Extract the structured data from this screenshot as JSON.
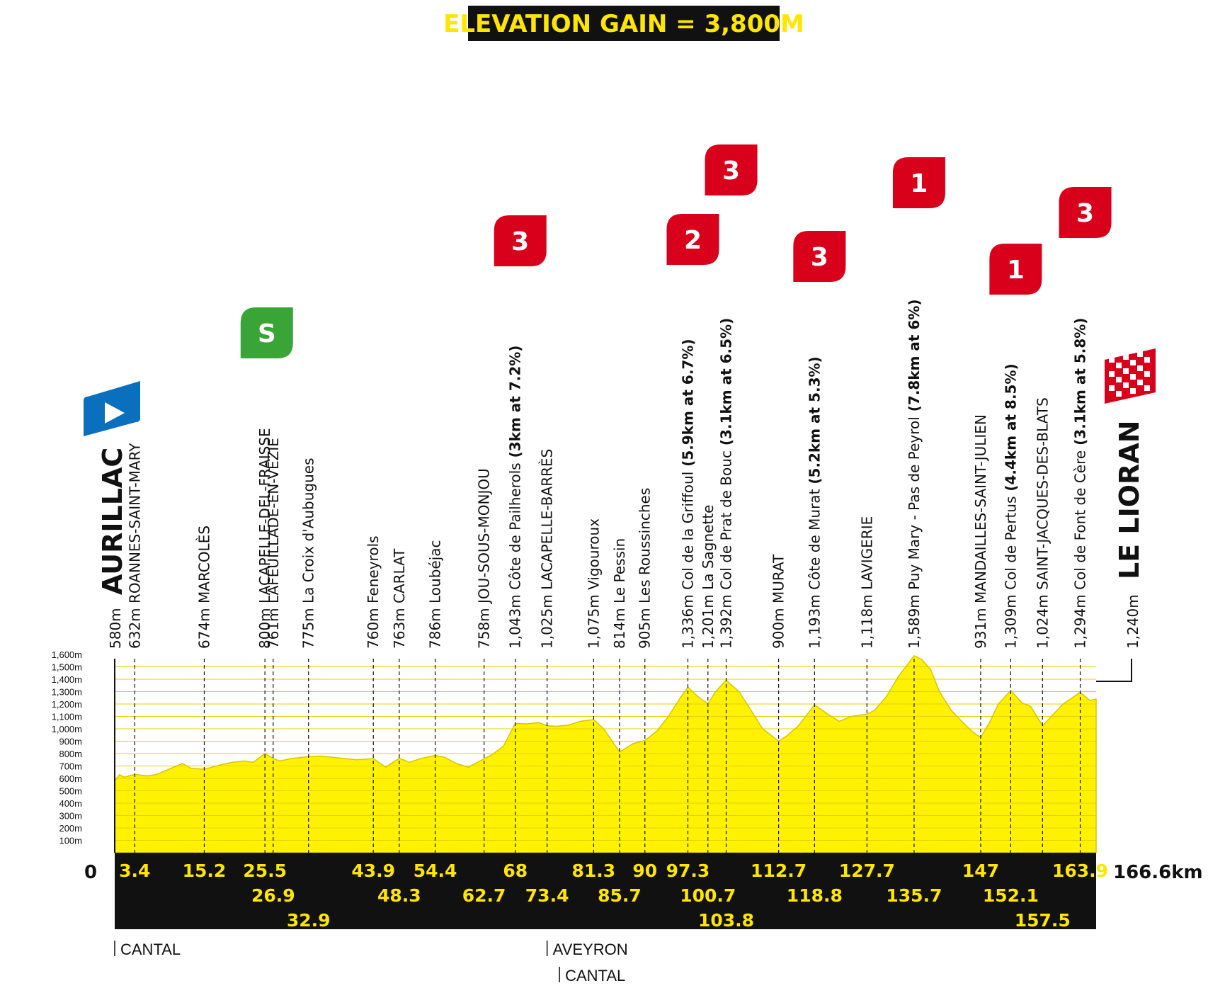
{
  "banner": {
    "text": "ELEVATION GAIN = 3,800M"
  },
  "colors": {
    "profile": "#fff200",
    "bar": "#111111",
    "bar_text": "#ffe600",
    "climb": "#d9001b",
    "sprint": "#3aa537",
    "start": "#0a6fbd"
  },
  "chart_data": {
    "type": "area",
    "title": "ELEVATION GAIN = 3,800M",
    "xlabel": "",
    "ylabel": "",
    "x_range": [
      0,
      166.6
    ],
    "ylim": [
      0,
      1600
    ],
    "y_ticks": [
      "100m",
      "200m",
      "300m",
      "400m",
      "500m",
      "600m",
      "700m",
      "800m",
      "900m",
      "1,000m",
      "1,100m",
      "1,200m",
      "1,300m",
      "1,400m",
      "1,500m",
      "1,600m"
    ],
    "y_tick_values": [
      100,
      200,
      300,
      400,
      500,
      600,
      700,
      800,
      900,
      1000,
      1100,
      1200,
      1300,
      1400,
      1500,
      1600
    ],
    "start_km_label": "0",
    "finish_km_label": "166.6km",
    "series": [
      {
        "x": [
          0,
          0.8,
          1.6,
          3.4,
          5.5,
          7,
          8.5,
          10,
          11.5,
          13,
          15.2,
          16.5,
          18,
          20,
          22,
          23.5,
          25.5,
          26.9,
          28,
          30,
          32.9,
          35,
          37,
          39,
          41,
          43.9,
          46,
          48.3,
          50,
          52,
          54.4,
          56,
          58,
          60,
          62.7,
          64,
          66,
          68,
          70,
          72,
          73.4,
          75,
          77,
          79,
          81.3,
          83,
          85.7,
          87,
          88,
          90,
          92,
          94,
          96,
          97.3,
          99,
          100.7,
          102,
          103.8,
          106,
          108,
          110,
          112.7,
          114,
          116,
          118.8,
          121,
          123,
          125,
          127.7,
          129,
          131,
          133,
          135.7,
          137,
          138.5,
          140,
          142,
          144,
          145.5,
          147,
          148.5,
          150,
          152.1,
          154,
          155.5,
          157.5,
          159,
          161,
          163.9,
          165.5,
          166.6
        ],
        "y": [
          580,
          630,
          610,
          632,
          620,
          630,
          660,
          690,
          720,
          680,
          674,
          690,
          710,
          730,
          740,
          730,
          800,
          761,
          740,
          760,
          775,
          780,
          770,
          760,
          750,
          760,
          690,
          763,
          730,
          760,
          786,
          770,
          720,
          690,
          758,
          790,
          860,
          1043,
          1040,
          1050,
          1025,
          1020,
          1030,
          1060,
          1075,
          1000,
          814,
          850,
          880,
          905,
          980,
          1100,
          1250,
          1336,
          1260,
          1201,
          1300,
          1392,
          1300,
          1150,
          1000,
          900,
          940,
          1020,
          1193,
          1120,
          1060,
          1100,
          1118,
          1150,
          1260,
          1420,
          1589,
          1560,
          1480,
          1300,
          1150,
          1050,
          980,
          931,
          1050,
          1200,
          1309,
          1210,
          1180,
          1024,
          1100,
          1200,
          1294,
          1230,
          1240
        ]
      }
    ]
  },
  "start": {
    "name": "AURILLAC",
    "alt": "580m",
    "km": 0
  },
  "finish": {
    "name": "LE LIORAN",
    "alt": "1,240m",
    "km": 166.6
  },
  "waypoints": [
    {
      "alt": "632m",
      "name": "ROANNES-SAINT-MARY",
      "extra": "",
      "km": 3.4
    },
    {
      "alt": "674m",
      "name": "MARCOLÈS",
      "extra": "",
      "km": 15.2
    },
    {
      "alt": "800m",
      "name": "LACAPELLE-DEL-FRAISSE",
      "extra": "",
      "km": 25.5
    },
    {
      "alt": "761m",
      "name": "LAFEUILLADE-EN-VÉZIE",
      "extra": "",
      "km": 26.9
    },
    {
      "alt": "775m",
      "name": "La Croix d'Aubugues",
      "extra": "",
      "km": 32.9
    },
    {
      "alt": "760m",
      "name": "Feneyrols",
      "extra": "",
      "km": 43.9
    },
    {
      "alt": "763m",
      "name": "CARLAT",
      "extra": "",
      "km": 48.3
    },
    {
      "alt": "786m",
      "name": "Loubéjac",
      "extra": "",
      "km": 54.4
    },
    {
      "alt": "758m",
      "name": "JOU-SOUS-MONJOU",
      "extra": "",
      "km": 62.7
    },
    {
      "alt": "1,043m",
      "name": "Côte de Pailherols",
      "extra": "(3km at 7.2%)",
      "km": 68
    },
    {
      "alt": "1,025m",
      "name": "LACAPELLE-BARRÈS",
      "extra": "",
      "km": 73.4
    },
    {
      "alt": "1,075m",
      "name": "Vigouroux",
      "extra": "",
      "km": 81.3
    },
    {
      "alt": "814m",
      "name": "Le Pessin",
      "extra": "",
      "km": 85.7
    },
    {
      "alt": "905m",
      "name": "Les Roussinches",
      "extra": "",
      "km": 90
    },
    {
      "alt": "1,336m",
      "name": "Col de la Griffoul",
      "extra": "(5.9km at 6.7%)",
      "km": 97.3
    },
    {
      "alt": "1,201m",
      "name": "La Sagnette",
      "extra": "",
      "km": 100.7
    },
    {
      "alt": "1,392m",
      "name": "Col de Prat de Bouc",
      "extra": "(3.1km at 6.5%)",
      "km": 103.8
    },
    {
      "alt": "900m",
      "name": "MURAT",
      "extra": "",
      "km": 112.7
    },
    {
      "alt": "1,193m",
      "name": "Côte de Murat",
      "extra": "(5.2km at 5.3%)",
      "km": 118.8
    },
    {
      "alt": "1,118m",
      "name": "LAVIGERIE",
      "extra": "",
      "km": 127.7
    },
    {
      "alt": "1,589m",
      "name": "Puy Mary - Pas de Peyrol",
      "extra": "(7.8km at 6%)",
      "km": 135.7
    },
    {
      "alt": "931m",
      "name": "MANDAILLES-SAINT-JULIEN",
      "extra": "",
      "km": 147
    },
    {
      "alt": "1,309m",
      "name": "Col de Pertus",
      "extra": "(4.4km at 8.5%)",
      "km": 152.1
    },
    {
      "alt": "1,024m",
      "name": "SAINT-JACQUES-DES-BLATS",
      "extra": "",
      "km": 157.5
    },
    {
      "alt": "1,294m",
      "name": "Col de Font de Cère",
      "extra": "(3.1km at 5.8%)",
      "km": 163.9
    }
  ],
  "km_labels_row1": [
    "3.4",
    "15.2",
    "25.5",
    "43.9",
    "54.4",
    "68",
    "81.3",
    "90",
    "97.3",
    "112.7",
    "127.7",
    "147",
    "163.9"
  ],
  "km_labels_row2": [
    "26.9",
    "48.3",
    "62.7",
    "73.4",
    "85.7",
    "100.7",
    "118.8",
    "135.7",
    "152.1"
  ],
  "km_labels_row3": [
    "32.9",
    "103.8",
    "157.5"
  ],
  "climb_badges": [
    {
      "cat": "3",
      "km": 68
    },
    {
      "cat": "2",
      "km": 97.3
    },
    {
      "cat": "3",
      "km": 103.8
    },
    {
      "cat": "3",
      "km": 118.8
    },
    {
      "cat": "1",
      "km": 135.7
    },
    {
      "cat": "1",
      "km": 152.1
    },
    {
      "cat": "3",
      "km": 163.9
    }
  ],
  "sprint_badge": {
    "label": "S",
    "km": 26.9
  },
  "regions": [
    {
      "name": "CANTAL",
      "km": 0
    },
    {
      "name": "AVEYRON",
      "km": 73.4
    },
    {
      "name": "CANTAL",
      "km": 75.5
    }
  ]
}
